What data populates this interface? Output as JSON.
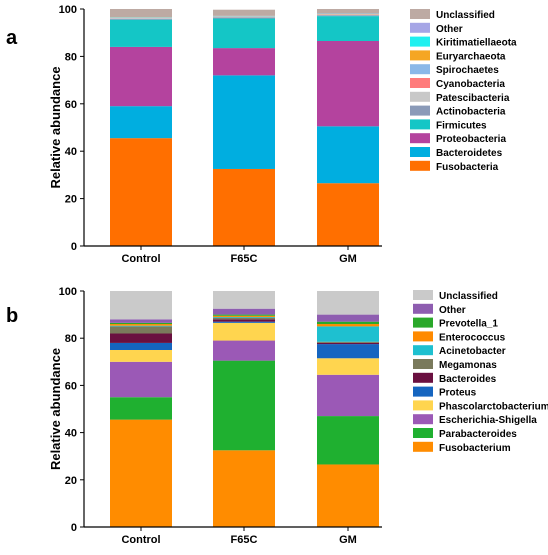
{
  "chart_data": [
    {
      "type": "bar",
      "stacked": true,
      "panel_label": "a",
      "ylabel": "Relative abundance",
      "ylim": [
        0,
        100
      ],
      "yticks": [
        0,
        20,
        40,
        60,
        80,
        100
      ],
      "categories": [
        "Control",
        "F65C",
        "GM"
      ],
      "legend_position": "right",
      "legend_order": [
        "Unclassified",
        "Other",
        "Kiritimatiellaeota",
        "Euryarchaeota",
        "Spirochaetes",
        "Cyanobacteria",
        "Patescibacteria",
        "Actinobacteria",
        "Firmicutes",
        "Proteobacteria",
        "Bacteroidetes",
        "Fusobacteria"
      ],
      "series": [
        {
          "name": "Fusobacteria",
          "color": "#ff6f00",
          "values": [
            45.5,
            32.5,
            26.5
          ]
        },
        {
          "name": "Bacteroidetes",
          "color": "#00aee0",
          "values": [
            13.5,
            39.5,
            24.0
          ]
        },
        {
          "name": "Proteobacteria",
          "color": "#b4439e",
          "values": [
            25.0,
            11.5,
            36.0
          ]
        },
        {
          "name": "Firmicutes",
          "color": "#14c6c6",
          "values": [
            11.5,
            12.5,
            10.5
          ]
        },
        {
          "name": "Actinobacteria",
          "color": "#8a9ab8",
          "values": [
            0.3,
            0.4,
            0.4
          ]
        },
        {
          "name": "Patescibacteria",
          "color": "#c8c8c8",
          "values": [
            0.2,
            0.2,
            0.2
          ]
        },
        {
          "name": "Cyanobacteria",
          "color": "#ff7b7b",
          "values": [
            0.1,
            0.1,
            0.1
          ]
        },
        {
          "name": "Spirochaetes",
          "color": "#8bb8e8",
          "values": [
            0.1,
            0.1,
            0.1
          ]
        },
        {
          "name": "Euryarchaeota",
          "color": "#f5a623",
          "values": [
            0.1,
            0.1,
            0.1
          ]
        },
        {
          "name": "Kiritimatiellaeota",
          "color": "#20f0f0",
          "values": [
            0.1,
            0.1,
            0.1
          ]
        },
        {
          "name": "Other",
          "color": "#a6a6e6",
          "values": [
            0.1,
            0.1,
            0.1
          ]
        },
        {
          "name": "Unclassified",
          "color": "#bdaaa3",
          "values": [
            3.5,
            2.6,
            1.9
          ]
        }
      ]
    },
    {
      "type": "bar",
      "stacked": true,
      "panel_label": "b",
      "ylabel": "Relative abundance",
      "ylim": [
        0,
        100
      ],
      "yticks": [
        0,
        20,
        40,
        60,
        80,
        100
      ],
      "categories": [
        "Control",
        "F65C",
        "GM"
      ],
      "legend_position": "right",
      "legend_order": [
        "Unclassified",
        "Other",
        "Prevotella_1",
        "Enterococcus",
        "Acinetobacter",
        "Megamonas",
        "Bacteroides",
        "Proteus",
        "Phascolarctobacterium",
        "Escherichia-Shigella",
        "Parabacteroides",
        "Fusobacterium"
      ],
      "series": [
        {
          "name": "Fusobacterium",
          "color": "#ff8c00",
          "values": [
            45.5,
            32.5,
            26.5
          ]
        },
        {
          "name": "Parabacteroides",
          "color": "#1fb030",
          "values": [
            9.5,
            38.0,
            20.5
          ]
        },
        {
          "name": "Escherichia-Shigella",
          "color": "#9b59b6",
          "values": [
            15.0,
            8.5,
            17.5
          ]
        },
        {
          "name": "Phascolarctobacterium",
          "color": "#ffd54f",
          "values": [
            5.0,
            7.5,
            7.0
          ]
        },
        {
          "name": "Proteus",
          "color": "#1565c0",
          "values": [
            3.0,
            0.5,
            6.0
          ]
        },
        {
          "name": "Bacteroides",
          "color": "#6a1040",
          "values": [
            4.0,
            1.0,
            0.5
          ]
        },
        {
          "name": "Megamonas",
          "color": "#7a7a5c",
          "values": [
            3.0,
            0.7,
            0.5
          ]
        },
        {
          "name": "Acinetobacter",
          "color": "#1ec0d0",
          "values": [
            0.3,
            0.3,
            6.5
          ]
        },
        {
          "name": "Enterococcus",
          "color": "#ff8a00",
          "values": [
            0.7,
            0.5,
            1.0
          ]
        },
        {
          "name": "Prevotella_1",
          "color": "#2aa82a",
          "values": [
            0.5,
            0.5,
            1.0
          ]
        },
        {
          "name": "Other",
          "color": "#8e5db0",
          "values": [
            1.5,
            2.5,
            3.0
          ]
        },
        {
          "name": "Unclassified",
          "color": "#cacaca",
          "values": [
            12.0,
            7.5,
            10.0
          ]
        }
      ]
    }
  ]
}
